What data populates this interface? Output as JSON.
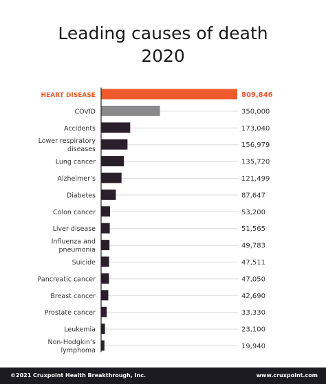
{
  "header": {
    "title_line1": "Leading causes of death",
    "title_line2": "2020"
  },
  "footer": {
    "copyright": "©2021 Cruxpoint Health Breakthrough, Inc.",
    "website": "www.cruxpoint.com"
  },
  "colors": {
    "highlight": "#ee5a2c",
    "covid": "#8a898b",
    "default": "#2b1f2c",
    "text": "#333333",
    "gridline": "#d9d9d9",
    "axis": "#222222"
  },
  "chart_data": {
    "type": "bar",
    "orientation": "horizontal",
    "title": "Leading causes of death 2020",
    "categories": [
      "HEART DISEASE",
      "COVID",
      "Accidents",
      "Lower respiratory diseases",
      "Lung cancer",
      "Alzheimer's",
      "Diabetes",
      "Colon cancer",
      "Liver disease",
      "Influenza and pneumonia",
      "Suicide",
      "Pancreatic cancer",
      "Breast cancer",
      "Prostate cancer",
      "Leukemia",
      "Non-Hodgkin's lymphoma"
    ],
    "label_lines": [
      [
        "HEART DISEASE"
      ],
      [
        "COVID"
      ],
      [
        "Accidents"
      ],
      [
        "Lower respiratory",
        "diseases"
      ],
      [
        "Lung cancer"
      ],
      [
        "Alzheimer’s"
      ],
      [
        "Diabetes"
      ],
      [
        "Colon cancer"
      ],
      [
        "Liver disease"
      ],
      [
        "Influenza and",
        "pneumonia"
      ],
      [
        "Suicide"
      ],
      [
        "Pancreatic cancer"
      ],
      [
        "Breast cancer"
      ],
      [
        "Prostate cancer"
      ],
      [
        "Leukemia"
      ],
      [
        "Non-Hodgkin’s",
        "lymphoma"
      ]
    ],
    "values": [
      809846,
      350000,
      173040,
      156979,
      135720,
      121499,
      87647,
      53200,
      51565,
      49783,
      47511,
      47050,
      42690,
      33330,
      23100,
      19940
    ],
    "value_labels": [
      "809,846",
      "350,000",
      "173,040",
      "156,979",
      "135,720",
      "121,499",
      "87,647",
      "53,200",
      "51,565",
      "49,783",
      "47,511",
      "47,050",
      "42,690",
      "33,330",
      "23,100",
      "19,940"
    ],
    "xlim": [
      0,
      809846
    ],
    "grid": true
  }
}
